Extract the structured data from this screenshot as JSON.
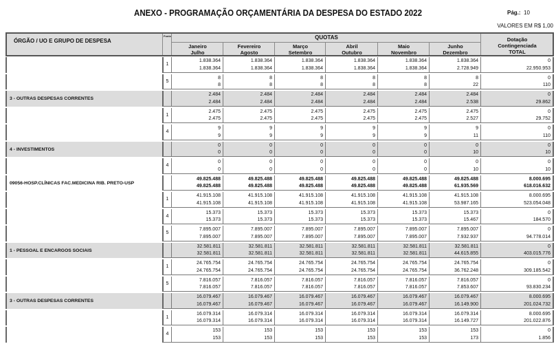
{
  "title": "ANEXO - PROGRAMAÇÃO ORÇAMENTÁRIA DA DESPESA DO ESTADO 2022",
  "page_label": "Pág.:",
  "page_number": "10",
  "values_note": "VALORES EM R$ 1,00",
  "header": {
    "org": "ÓRGÃO / UO E GRUPO DE DESPESA",
    "fonte": "Fonte",
    "quotas": "QUOTAS",
    "months": [
      [
        "Janeiro",
        "Julho"
      ],
      [
        "Fevereiro",
        "Agosto"
      ],
      [
        "Março",
        "Setembro"
      ],
      [
        "Abril",
        "Outubro"
      ],
      [
        "Maio",
        "Novembro"
      ],
      [
        "Junho",
        "Dezembro"
      ]
    ],
    "total": [
      "Dotação",
      "Contingenciada",
      "TOTAL"
    ]
  },
  "rows": [
    {
      "label": "",
      "fonte": "1",
      "type": "fonte",
      "v": [
        [
          "1.838.364",
          "1.838.364"
        ],
        [
          "1.838.364",
          "1.838.364"
        ],
        [
          "1.838.364",
          "1.838.364"
        ],
        [
          "1.838.364",
          "1.838.364"
        ],
        [
          "1.838.364",
          "1.838.364"
        ],
        [
          "1.838.364",
          "2.728.949"
        ],
        [
          "0",
          "22.950.953"
        ]
      ]
    },
    {
      "label": "",
      "fonte": "5",
      "type": "fonte",
      "v": [
        [
          "8",
          "8"
        ],
        [
          "8",
          "8"
        ],
        [
          "8",
          "8"
        ],
        [
          "8",
          "8"
        ],
        [
          "8",
          "8"
        ],
        [
          "8",
          "22"
        ],
        [
          "0",
          "110"
        ]
      ]
    },
    {
      "label": "3 - OUTRAS DESPESAS CORRENTES",
      "fonte": "",
      "type": "group",
      "v": [
        [
          "2.484",
          "2.484"
        ],
        [
          "2.484",
          "2.484"
        ],
        [
          "2.484",
          "2.484"
        ],
        [
          "2.484",
          "2.484"
        ],
        [
          "2.484",
          "2.484"
        ],
        [
          "2.484",
          "2.538"
        ],
        [
          "0",
          "29.862"
        ]
      ]
    },
    {
      "label": "",
      "fonte": "1",
      "type": "fonte",
      "v": [
        [
          "2.475",
          "2.475"
        ],
        [
          "2.475",
          "2.475"
        ],
        [
          "2.475",
          "2.475"
        ],
        [
          "2.475",
          "2.475"
        ],
        [
          "2.475",
          "2.475"
        ],
        [
          "2.475",
          "2.527"
        ],
        [
          "0",
          "29.752"
        ]
      ]
    },
    {
      "label": "",
      "fonte": "4",
      "type": "fonte",
      "v": [
        [
          "9",
          "9"
        ],
        [
          "9",
          "9"
        ],
        [
          "9",
          "9"
        ],
        [
          "9",
          "9"
        ],
        [
          "9",
          "9"
        ],
        [
          "9",
          "11"
        ],
        [
          "0",
          "110"
        ]
      ]
    },
    {
      "label": "4 - INVESTIMENTOS",
      "fonte": "",
      "type": "group",
      "v": [
        [
          "0",
          "0"
        ],
        [
          "0",
          "0"
        ],
        [
          "0",
          "0"
        ],
        [
          "0",
          "0"
        ],
        [
          "0",
          "0"
        ],
        [
          "0",
          "10"
        ],
        [
          "0",
          "10"
        ]
      ]
    },
    {
      "label": "",
      "fonte": "4",
      "type": "fonte",
      "v": [
        [
          "0",
          "0"
        ],
        [
          "0",
          "0"
        ],
        [
          "0",
          "0"
        ],
        [
          "0",
          "0"
        ],
        [
          "0",
          "0"
        ],
        [
          "0",
          "10"
        ],
        [
          "0",
          "10"
        ]
      ]
    },
    {
      "label": "09056-HOSP.CLÍNICAS FAC.MEDICINA RIB. PRETO-USP",
      "fonte": "",
      "type": "uo",
      "v": [
        [
          "49.825.488",
          "49.825.488"
        ],
        [
          "49.825.488",
          "49.825.488"
        ],
        [
          "49.825.488",
          "49.825.488"
        ],
        [
          "49.825.488",
          "49.825.488"
        ],
        [
          "49.825.488",
          "49.825.488"
        ],
        [
          "49.825.488",
          "61.935.569"
        ],
        [
          "8.000.695",
          "618.016.632"
        ]
      ]
    },
    {
      "label": "",
      "fonte": "1",
      "type": "fonte",
      "v": [
        [
          "41.915.108",
          "41.915.108"
        ],
        [
          "41.915.108",
          "41.915.108"
        ],
        [
          "41.915.108",
          "41.915.108"
        ],
        [
          "41.915.108",
          "41.915.108"
        ],
        [
          "41.915.108",
          "41.915.108"
        ],
        [
          "41.915.108",
          "53.987.165"
        ],
        [
          "8.000.695",
          "523.054.048"
        ]
      ]
    },
    {
      "label": "",
      "fonte": "4",
      "type": "fonte",
      "v": [
        [
          "15.373",
          "15.373"
        ],
        [
          "15.373",
          "15.373"
        ],
        [
          "15.373",
          "15.373"
        ],
        [
          "15.373",
          "15.373"
        ],
        [
          "15.373",
          "15.373"
        ],
        [
          "15.373",
          "15.467"
        ],
        [
          "0",
          "184.570"
        ]
      ]
    },
    {
      "label": "",
      "fonte": "5",
      "type": "fonte",
      "v": [
        [
          "7.895.007",
          "7.895.007"
        ],
        [
          "7.895.007",
          "7.895.007"
        ],
        [
          "7.895.007",
          "7.895.007"
        ],
        [
          "7.895.007",
          "7.895.007"
        ],
        [
          "7.895.007",
          "7.895.007"
        ],
        [
          "7.895.007",
          "7.932.937"
        ],
        [
          "0",
          "94.778.014"
        ]
      ]
    },
    {
      "label": "1 - PESSOAL E ENCARGOS SOCIAIS",
      "fonte": "",
      "type": "group",
      "v": [
        [
          "32.581.811",
          "32.581.811"
        ],
        [
          "32.581.811",
          "32.581.811"
        ],
        [
          "32.581.811",
          "32.581.811"
        ],
        [
          "32.581.811",
          "32.581.811"
        ],
        [
          "32.581.811",
          "32.581.811"
        ],
        [
          "32.581.811",
          "44.615.855"
        ],
        [
          "0",
          "403.015.776"
        ]
      ]
    },
    {
      "label": "",
      "fonte": "1",
      "type": "fonte",
      "v": [
        [
          "24.765.754",
          "24.765.754"
        ],
        [
          "24.765.754",
          "24.765.754"
        ],
        [
          "24.765.754",
          "24.765.754"
        ],
        [
          "24.765.754",
          "24.765.754"
        ],
        [
          "24.765.754",
          "24.765.754"
        ],
        [
          "24.765.754",
          "36.762.248"
        ],
        [
          "0",
          "309.185.542"
        ]
      ]
    },
    {
      "label": "",
      "fonte": "5",
      "type": "fonte",
      "v": [
        [
          "7.816.057",
          "7.816.057"
        ],
        [
          "7.816.057",
          "7.816.057"
        ],
        [
          "7.816.057",
          "7.816.057"
        ],
        [
          "7.816.057",
          "7.816.057"
        ],
        [
          "7.816.057",
          "7.816.057"
        ],
        [
          "7.816.057",
          "7.853.607"
        ],
        [
          "0",
          "93.830.234"
        ]
      ]
    },
    {
      "label": "3 - OUTRAS DESPESAS CORRENTES",
      "fonte": "",
      "type": "group",
      "v": [
        [
          "16.079.467",
          "16.079.467"
        ],
        [
          "16.079.467",
          "16.079.467"
        ],
        [
          "16.079.467",
          "16.079.467"
        ],
        [
          "16.079.467",
          "16.079.467"
        ],
        [
          "16.079.467",
          "16.079.467"
        ],
        [
          "16.079.467",
          "16.149.900"
        ],
        [
          "8.000.695",
          "201.024.732"
        ]
      ]
    },
    {
      "label": "",
      "fonte": "1",
      "type": "fonte",
      "v": [
        [
          "16.079.314",
          "16.079.314"
        ],
        [
          "16.079.314",
          "16.079.314"
        ],
        [
          "16.079.314",
          "16.079.314"
        ],
        [
          "16.079.314",
          "16.079.314"
        ],
        [
          "16.079.314",
          "16.079.314"
        ],
        [
          "16.079.314",
          "16.149.727"
        ],
        [
          "8.000.695",
          "201.022.876"
        ]
      ]
    },
    {
      "label": "",
      "fonte": "4",
      "type": "fonte",
      "v": [
        [
          "153",
          "153"
        ],
        [
          "153",
          "153"
        ],
        [
          "153",
          "153"
        ],
        [
          "153",
          "153"
        ],
        [
          "153",
          "153"
        ],
        [
          "153",
          "173"
        ],
        [
          "0",
          "1.856"
        ]
      ]
    }
  ]
}
